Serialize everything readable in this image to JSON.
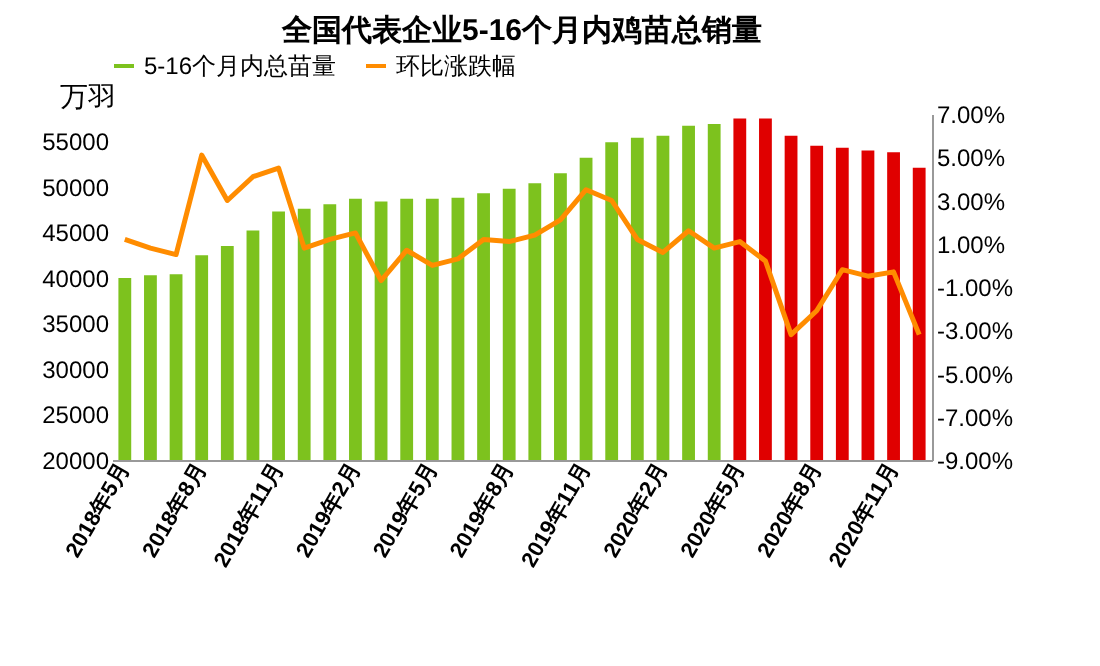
{
  "chart_data": {
    "type": "bar",
    "title": "全国代表企业5-16个月内鸡苗总销量",
    "ylabel": "万羽",
    "categories": [
      "2018年5月",
      null,
      null,
      "2018年8月",
      null,
      null,
      "2018年11月",
      null,
      null,
      "2019年2月",
      null,
      null,
      "2019年5月",
      null,
      null,
      "2019年8月",
      null,
      null,
      "2019年11月",
      null,
      null,
      "2020年2月",
      null,
      null,
      "2020年5月",
      null,
      null,
      "2020年8月",
      null,
      null,
      "2020年11月",
      null
    ],
    "series": [
      {
        "name": "5-16个月内总苗量",
        "color": "#7dc21e",
        "colors": [
          "#7dc21e",
          "#7dc21e",
          "#7dc21e",
          "#7dc21e",
          "#7dc21e",
          "#7dc21e",
          "#7dc21e",
          "#7dc21e",
          "#7dc21e",
          "#7dc21e",
          "#7dc21e",
          "#7dc21e",
          "#7dc21e",
          "#7dc21e",
          "#7dc21e",
          "#7dc21e",
          "#7dc21e",
          "#7dc21e",
          "#7dc21e",
          "#7dc21e",
          "#7dc21e",
          "#7dc21e",
          "#7dc21e",
          "#7dc21e",
          "#e00000",
          "#e00000",
          "#e00000",
          "#e00000",
          "#e00000",
          "#e00000",
          "#e00000",
          "#e00000"
        ],
        "values": [
          40000,
          40300,
          40400,
          42500,
          43500,
          45200,
          47300,
          47600,
          48100,
          48700,
          48400,
          48700,
          48700,
          48800,
          49300,
          49800,
          50400,
          51500,
          53200,
          54900,
          55400,
          55600,
          56700,
          56900,
          57500,
          57500,
          55600,
          54500,
          54300,
          54000,
          53800,
          52100
        ]
      },
      {
        "name": "环比涨跌幅",
        "type": "line",
        "axis": "y2",
        "color": "#ff8c00",
        "values": [
          1.2,
          0.8,
          0.5,
          5.1,
          3.0,
          4.1,
          4.5,
          0.8,
          1.2,
          1.5,
          -0.7,
          0.7,
          0.0,
          0.3,
          1.2,
          1.1,
          1.4,
          2.1,
          3.5,
          3.0,
          1.2,
          0.6,
          1.6,
          0.8,
          1.1,
          0.2,
          -3.2,
          -2.1,
          -0.2,
          -0.5,
          -0.3,
          -3.2
        ]
      }
    ],
    "ylim": [
      20000,
      58000
    ],
    "yticks": [
      20000,
      25000,
      30000,
      35000,
      40000,
      45000,
      50000,
      55000
    ],
    "y2lim": [
      -9,
      7
    ],
    "y2ticks": [
      {
        "value": -9,
        "label": "-9.00%"
      },
      {
        "value": -7,
        "label": "-7.00%"
      },
      {
        "value": -5,
        "label": "-5.00%"
      },
      {
        "value": -3,
        "label": "-3.00%"
      },
      {
        "value": -1,
        "label": "-1.00%"
      },
      {
        "value": 1,
        "label": "1.00%"
      },
      {
        "value": 3,
        "label": "3.00%"
      },
      {
        "value": 5,
        "label": "5.00%"
      },
      {
        "value": 7,
        "label": "7.00%"
      }
    ],
    "legend": "top",
    "grid": false
  }
}
